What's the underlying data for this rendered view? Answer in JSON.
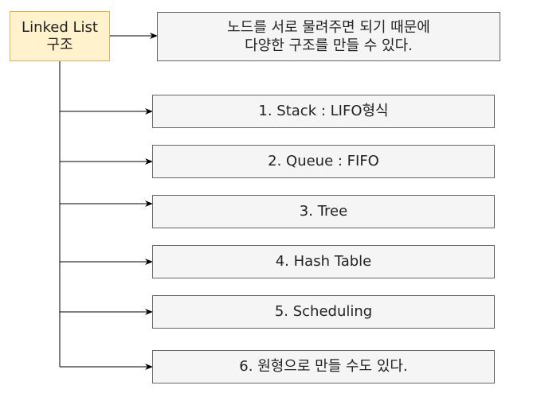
{
  "root": {
    "line1": "Linked List",
    "line2": "구조",
    "fill": "#fff2cc",
    "stroke": "#d6b656"
  },
  "description": {
    "line1": "노드를 서로 물려주면 되기 때문에",
    "line2": "다양한 구조를 만들 수 있다."
  },
  "items": [
    "1. Stack : LIFO형식",
    "2. Queue : FIFO",
    "3. Tree",
    "4. Hash Table",
    "5. Scheduling",
    "6. 원형으로 만들 수도 있다."
  ]
}
